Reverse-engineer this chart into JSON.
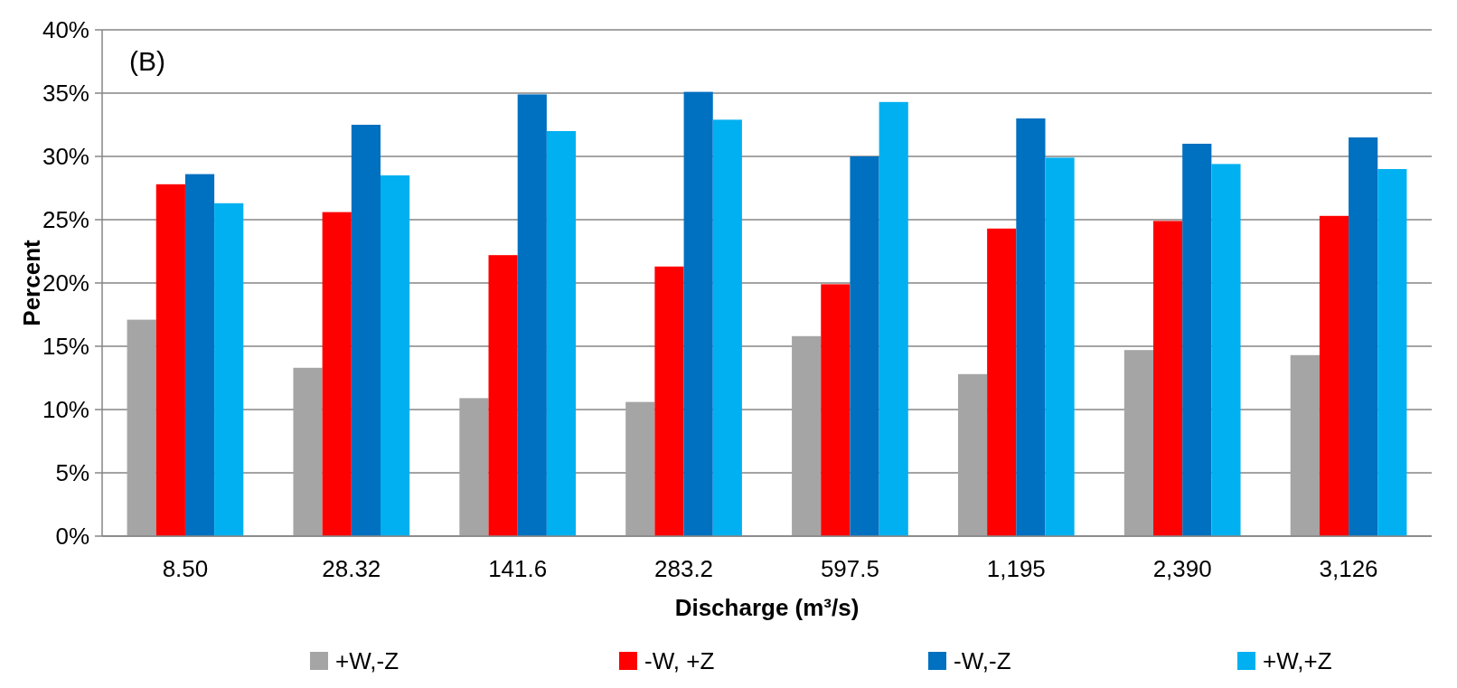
{
  "chart_data": {
    "type": "bar",
    "xlabel": "Discharge (m³/s)",
    "ylabel": "Percent",
    "annotations": [
      "(B)"
    ],
    "categories": [
      "8.50",
      "28.32",
      "141.6",
      "283.2",
      "597.5",
      "1,195",
      "2,390",
      "3,126"
    ],
    "series": [
      {
        "name": "+W,-Z",
        "color": "#a5a5a5",
        "values": [
          17.1,
          13.3,
          10.9,
          10.6,
          15.8,
          12.8,
          14.7,
          14.3
        ]
      },
      {
        "name": "-W, +Z",
        "color": "#ff0000",
        "values": [
          27.8,
          25.6,
          22.2,
          21.3,
          19.9,
          24.3,
          24.9,
          25.3
        ]
      },
      {
        "name": "-W,-Z",
        "color": "#0070c0",
        "values": [
          28.6,
          32.5,
          34.9,
          35.1,
          30.0,
          33.0,
          31.0,
          31.5
        ]
      },
      {
        "name": "+W,+Z",
        "color": "#00b0f0",
        "values": [
          26.3,
          28.5,
          32.0,
          32.9,
          34.3,
          29.9,
          29.4,
          29.0
        ]
      }
    ],
    "ylim": [
      0,
      40
    ],
    "yticks": [
      {
        "value": 0,
        "label": "0%"
      },
      {
        "value": 5,
        "label": "5%"
      },
      {
        "value": 10,
        "label": "10%"
      },
      {
        "value": 15,
        "label": "15%"
      },
      {
        "value": 20,
        "label": "20%"
      },
      {
        "value": 25,
        "label": "25%"
      },
      {
        "value": 30,
        "label": "30%"
      },
      {
        "value": 35,
        "label": "35%"
      },
      {
        "value": 40,
        "label": "40%"
      }
    ],
    "grid": "y",
    "legend": "bottom"
  }
}
